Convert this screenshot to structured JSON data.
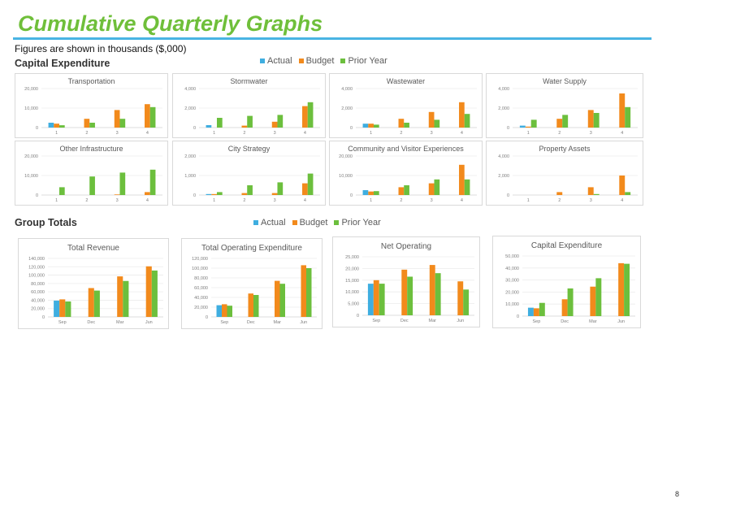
{
  "page": {
    "title": "Cumulative Quarterly Graphs",
    "subtitle": "Figures are shown in thousands ($,000)",
    "page_number": "8"
  },
  "colors": {
    "actual": "#3faee0",
    "budget": "#f28a1c",
    "prior": "#6cbf3d",
    "title_rule": "#49b4e3",
    "title_text": "#6fbf3a"
  },
  "sections": {
    "capital": {
      "title": "Capital Expenditure",
      "legend": {
        "actual": "Actual",
        "budget": "Budget",
        "prior": "Prior Year"
      }
    },
    "group": {
      "title": "Group Totals",
      "legend": {
        "actual": "Actual",
        "budget": "Budget",
        "prior": "Prior Year"
      }
    }
  },
  "chart_data": [
    {
      "type": "bar",
      "title": "Transportation",
      "categories": [
        "1",
        "2",
        "3",
        "4"
      ],
      "yticks": [
        "0",
        "10,000",
        "20,000"
      ],
      "ylim": [
        0,
        20000
      ],
      "series": [
        {
          "name": "Actual",
          "values": [
            2500,
            null,
            null,
            null
          ]
        },
        {
          "name": "Budget",
          "values": [
            2000,
            4500,
            9000,
            12000
          ]
        },
        {
          "name": "Prior Year",
          "values": [
            1200,
            2500,
            4500,
            10500
          ]
        }
      ]
    },
    {
      "type": "bar",
      "title": "Stormwater",
      "categories": [
        "1",
        "2",
        "3",
        "4"
      ],
      "yticks": [
        "0",
        "2,000",
        "4,000"
      ],
      "ylim": [
        0,
        4000
      ],
      "series": [
        {
          "name": "Actual",
          "values": [
            250,
            null,
            null,
            null
          ]
        },
        {
          "name": "Budget",
          "values": [
            null,
            200,
            600,
            2200
          ]
        },
        {
          "name": "Prior Year",
          "values": [
            1000,
            1200,
            1300,
            2600
          ]
        }
      ]
    },
    {
      "type": "bar",
      "title": "Wastewater",
      "categories": [
        "1",
        "2",
        "3",
        "4"
      ],
      "yticks": [
        "0",
        "2,000",
        "4,000"
      ],
      "ylim": [
        0,
        4000
      ],
      "series": [
        {
          "name": "Actual",
          "values": [
            400,
            null,
            null,
            null
          ]
        },
        {
          "name": "Budget",
          "values": [
            400,
            900,
            1600,
            2600
          ]
        },
        {
          "name": "Prior Year",
          "values": [
            300,
            500,
            800,
            1400
          ]
        }
      ]
    },
    {
      "type": "bar",
      "title": "Water Supply",
      "categories": [
        "1",
        "2",
        "3",
        "4"
      ],
      "yticks": [
        "0",
        "2,000",
        "4,000"
      ],
      "ylim": [
        0,
        4000
      ],
      "series": [
        {
          "name": "Actual",
          "values": [
            200,
            null,
            null,
            null
          ]
        },
        {
          "name": "Budget",
          "values": [
            100,
            900,
            1800,
            3500
          ]
        },
        {
          "name": "Prior Year",
          "values": [
            800,
            1300,
            1500,
            2100
          ]
        }
      ]
    },
    {
      "type": "bar",
      "title": "Other Infrastructure",
      "categories": [
        "1",
        "2",
        "3",
        "4"
      ],
      "yticks": [
        "0",
        "10,000",
        "20,000"
      ],
      "ylim": [
        0,
        20000
      ],
      "series": [
        {
          "name": "Actual",
          "values": [
            null,
            null,
            null,
            null
          ]
        },
        {
          "name": "Budget",
          "values": [
            null,
            null,
            300,
            1500
          ]
        },
        {
          "name": "Prior Year",
          "values": [
            4000,
            9500,
            11500,
            13000
          ]
        }
      ]
    },
    {
      "type": "bar",
      "title": "City Strategy",
      "categories": [
        "1",
        "2",
        "3",
        "4"
      ],
      "yticks": [
        "0",
        "1,000",
        "2,000"
      ],
      "ylim": [
        0,
        2000
      ],
      "series": [
        {
          "name": "Actual",
          "values": [
            50,
            null,
            null,
            null
          ]
        },
        {
          "name": "Budget",
          "values": [
            50,
            100,
            100,
            600
          ]
        },
        {
          "name": "Prior Year",
          "values": [
            150,
            500,
            650,
            1100
          ]
        }
      ]
    },
    {
      "type": "bar",
      "title": "Community and Visitor Experiences",
      "categories": [
        "1",
        "2",
        "3",
        "4"
      ],
      "yticks": [
        "0",
        "10,000",
        "20,000"
      ],
      "ylim": [
        0,
        20000
      ],
      "series": [
        {
          "name": "Actual",
          "values": [
            2500,
            null,
            null,
            null
          ]
        },
        {
          "name": "Budget",
          "values": [
            1800,
            4000,
            6000,
            15500
          ]
        },
        {
          "name": "Prior Year",
          "values": [
            2000,
            5000,
            8000,
            8000
          ]
        }
      ]
    },
    {
      "type": "bar",
      "title": "Property Assets",
      "categories": [
        "1",
        "2",
        "3",
        "4"
      ],
      "yticks": [
        "0",
        "2,000",
        "4,000"
      ],
      "ylim": [
        0,
        4000
      ],
      "series": [
        {
          "name": "Actual",
          "values": [
            null,
            null,
            null,
            null
          ]
        },
        {
          "name": "Budget",
          "values": [
            null,
            300,
            800,
            2000
          ]
        },
        {
          "name": "Prior Year",
          "values": [
            null,
            null,
            100,
            300
          ]
        }
      ]
    },
    {
      "type": "bar",
      "title": "Total Revenue",
      "categories": [
        "Sep",
        "Dec",
        "Mar",
        "Jun"
      ],
      "yticks": [
        "0",
        "20,000",
        "40,000",
        "60,000",
        "80,000",
        "100,000",
        "120,000",
        "140,000"
      ],
      "ylim": [
        0,
        140000
      ],
      "series": [
        {
          "name": "Actual",
          "values": [
            39000,
            null,
            null,
            null
          ]
        },
        {
          "name": "Budget",
          "values": [
            42000,
            69000,
            97000,
            121000
          ]
        },
        {
          "name": "Prior Year",
          "values": [
            37000,
            63000,
            86000,
            111000
          ]
        }
      ]
    },
    {
      "type": "bar",
      "title": "Total Operating Expenditure",
      "categories": [
        "Sep",
        "Dec",
        "Mar",
        "Jun"
      ],
      "yticks": [
        "0",
        "20,000",
        "40,000",
        "60,000",
        "80,000",
        "100,000",
        "120,000"
      ],
      "ylim": [
        0,
        120000
      ],
      "series": [
        {
          "name": "Actual",
          "values": [
            24000,
            null,
            null,
            null
          ]
        },
        {
          "name": "Budget",
          "values": [
            26000,
            48000,
            74000,
            106000
          ]
        },
        {
          "name": "Prior Year",
          "values": [
            23000,
            45000,
            68000,
            100000
          ]
        }
      ]
    },
    {
      "type": "bar",
      "title": "Net Operating",
      "categories": [
        "Sep",
        "Dec",
        "Mar",
        "Jun"
      ],
      "yticks": [
        "0",
        "5,000",
        "10,000",
        "15,000",
        "20,000",
        "25,000"
      ],
      "ylim": [
        0,
        25000
      ],
      "series": [
        {
          "name": "Actual",
          "values": [
            13500,
            null,
            null,
            null
          ]
        },
        {
          "name": "Budget",
          "values": [
            15000,
            19500,
            21500,
            14500
          ]
        },
        {
          "name": "Prior Year",
          "values": [
            13500,
            16500,
            18000,
            11000
          ]
        }
      ]
    },
    {
      "type": "bar",
      "title": "Capital Expenditure",
      "categories": [
        "Sep",
        "Dec",
        "Mar",
        "Jun"
      ],
      "yticks": [
        "0",
        "10,000",
        "20,000",
        "30,000",
        "40,000",
        "50,000"
      ],
      "ylim": [
        0,
        50000
      ],
      "series": [
        {
          "name": "Actual",
          "values": [
            7000,
            null,
            null,
            null
          ]
        },
        {
          "name": "Budget",
          "values": [
            6500,
            14000,
            24500,
            44000
          ]
        },
        {
          "name": "Prior Year",
          "values": [
            11000,
            23000,
            31500,
            43500
          ]
        }
      ]
    }
  ]
}
